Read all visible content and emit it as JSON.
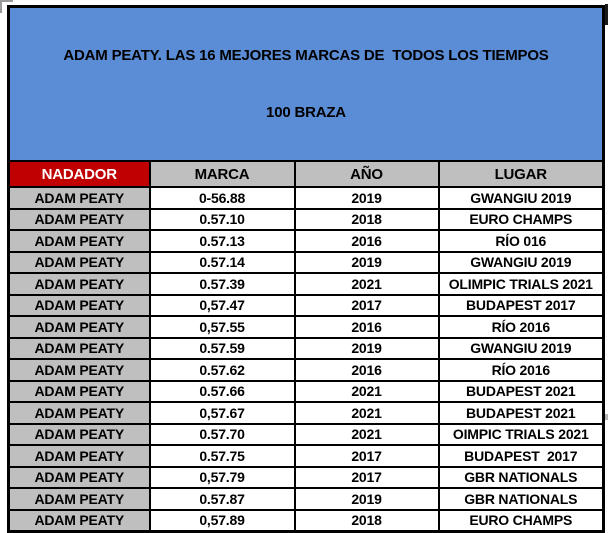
{
  "colors": {
    "title_bg": "#5B8CD6",
    "header_bg": "#BFBFBF",
    "nadador_bg": "#C00000",
    "nadador_text": "#FFFFFF",
    "row_label_bg": "#BFBFBF",
    "cell_bg": "#FFFFFF",
    "border": "#000000",
    "text": "#000000"
  },
  "chart_data": {
    "type": "table",
    "title_line1": "ADAM PEATY. LAS 16 MEJORES MARCAS DE  TODOS LOS TIEMPOS",
    "title_line2": "100 BRAZA",
    "columns": [
      "NADADOR",
      "MARCA",
      "AÑO",
      "LUGAR"
    ],
    "rows": [
      [
        "ADAM PEATY",
        "0-56.88",
        "2019",
        "GWANGIU 2019"
      ],
      [
        "ADAM PEATY",
        "0.57.10",
        "2018",
        "EURO CHAMPS"
      ],
      [
        "ADAM PEATY",
        "0.57.13",
        "2016",
        "RÍO 016"
      ],
      [
        "ADAM PEATY",
        "0.57.14",
        "2019",
        "GWANGIU 2019"
      ],
      [
        "ADAM PEATY",
        "0.57.39",
        "2021",
        "OLIMPIC TRIALS 2021"
      ],
      [
        "ADAM PEATY",
        "0,57.47",
        "2017",
        "BUDAPEST 2017"
      ],
      [
        "ADAM PEATY",
        "0,57.55",
        "2016",
        "RÍO 2016"
      ],
      [
        "ADAM PEATY",
        "0.57.59",
        "2019",
        "GWANGIU 2019"
      ],
      [
        "ADAM PEATY",
        "0.57.62",
        "2016",
        "RÍO 2016"
      ],
      [
        "ADAM PEATY",
        "0.57.66",
        "2021",
        "BUDAPEST 2021"
      ],
      [
        "ADAM PEATY",
        "0,57.67",
        "2021",
        "BUDAPEST 2021"
      ],
      [
        "ADAM PEATY",
        "0.57.70",
        "2021",
        "OIMPIC TRIALS 2021"
      ],
      [
        "ADAM PEATY",
        "0.57.75",
        "2017",
        "BUDAPEST  2017"
      ],
      [
        "ADAM PEATY",
        "0,57.79",
        "2017",
        "GBR NATIONALS"
      ],
      [
        "ADAM PEATY",
        "0.57.87",
        "2019",
        "GBR NATIONALS"
      ],
      [
        "ADAM PEATY",
        "0,57.89",
        "2018",
        "EURO CHAMPS"
      ]
    ]
  }
}
